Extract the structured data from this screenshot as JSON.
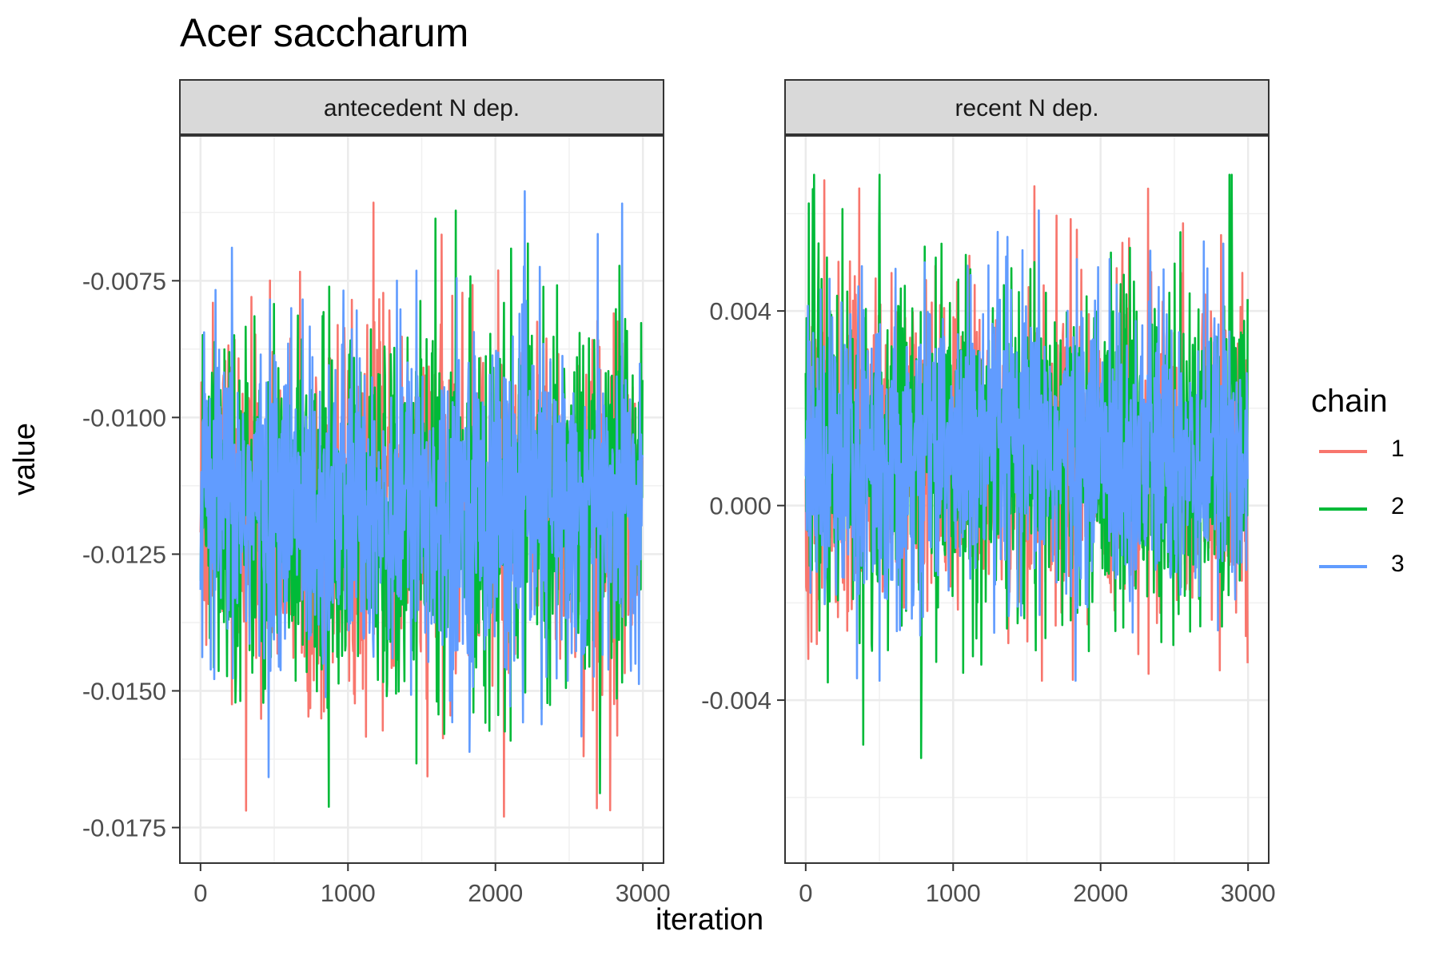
{
  "title": "Acer saccharum",
  "xlabel": "iteration",
  "ylabel": "value",
  "legend": {
    "title": "chain",
    "items": [
      {
        "label": "1",
        "color": "#F8766D"
      },
      {
        "label": "2",
        "color": "#00BA38"
      },
      {
        "label": "3",
        "color": "#619CFF"
      }
    ]
  },
  "chart_data": [
    {
      "type": "line",
      "panel_title": "antecedent N dep.",
      "x_ticks": [
        0,
        1000,
        2000,
        3000
      ],
      "x_tick_labels": [
        "0",
        "1000",
        "2000",
        "3000"
      ],
      "y_ticks": [
        -0.0075,
        -0.01,
        -0.0125,
        -0.015,
        -0.0175
      ],
      "y_tick_labels": [
        "-0.0075",
        "-0.0100",
        "-0.0125",
        "-0.0150",
        "-0.0175"
      ],
      "xlim": [
        -140,
        3140
      ],
      "ylim": [
        -0.01815,
        -0.00485
      ],
      "grid": true,
      "series": [
        {
          "name": "1",
          "color": "#F8766D",
          "center": -0.0116,
          "lower_envelope": -0.0146,
          "upper_envelope": -0.0088,
          "min": -0.0173,
          "max": -0.006
        },
        {
          "name": "2",
          "color": "#00BA38",
          "center": -0.0116,
          "lower_envelope": -0.0146,
          "upper_envelope": -0.0088,
          "min": -0.0176,
          "max": -0.0061
        },
        {
          "name": "3",
          "color": "#619CFF",
          "center": -0.0116,
          "lower_envelope": -0.0143,
          "upper_envelope": -0.0089,
          "min": -0.0174,
          "max": -0.0058
        }
      ]
    },
    {
      "type": "line",
      "panel_title": "recent N dep.",
      "x_ticks": [
        0,
        1000,
        2000,
        3000
      ],
      "x_tick_labels": [
        "0",
        "1000",
        "2000",
        "3000"
      ],
      "y_ticks": [
        0.004,
        0.0,
        -0.004
      ],
      "y_tick_labels": [
        "0.004",
        "0.000",
        "-0.004"
      ],
      "xlim": [
        -140,
        3140
      ],
      "ylim": [
        -0.00735,
        0.0076
      ],
      "grid": true,
      "series": [
        {
          "name": "1",
          "color": "#F8766D",
          "center": 0.0011,
          "lower_envelope": -0.0018,
          "upper_envelope": 0.0041,
          "min": -0.0036,
          "max": 0.0069
        },
        {
          "name": "2",
          "color": "#00BA38",
          "center": 0.0011,
          "lower_envelope": -0.0019,
          "upper_envelope": 0.0042,
          "min": -0.0067,
          "max": 0.0068
        },
        {
          "name": "3",
          "color": "#619CFF",
          "center": 0.0011,
          "lower_envelope": -0.0017,
          "upper_envelope": 0.004,
          "min": -0.0036,
          "max": 0.0069
        }
      ]
    }
  ]
}
